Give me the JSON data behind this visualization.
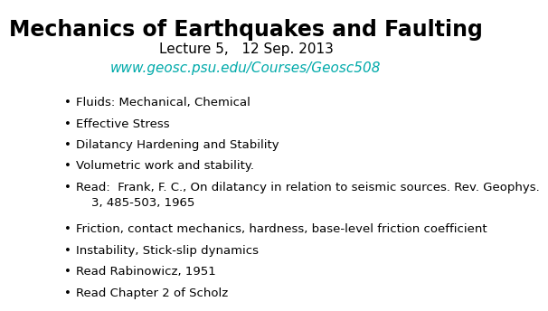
{
  "title": "Mechanics of Earthquakes and Faulting",
  "subtitle": "Lecture 5,   12 Sep. 2013",
  "url": "www.geosc.psu.edu/Courses/Geosc508",
  "url_color": "#00AAAA",
  "background_color": "#ffffff",
  "title_fontsize": 17,
  "subtitle_fontsize": 11,
  "url_fontsize": 11,
  "body_fontsize": 9.5,
  "bullet_items_group1": [
    "Fluids: Mechanical, Chemical",
    "Effective Stress",
    "Dilatancy Hardening and Stability",
    "Volumetric work and stability.",
    "Read:  Frank, F. C., On dilatancy in relation to seismic sources. Rev. Geophys.\n    3, 485-503, 1965"
  ],
  "bullet_items_group2": [
    "Friction, contact mechanics, hardness, base-level friction coefficient",
    "Instability, Stick-slip dynamics",
    "Read Rabinowicz, 1951",
    "Read Chapter 2 of Scholz"
  ]
}
